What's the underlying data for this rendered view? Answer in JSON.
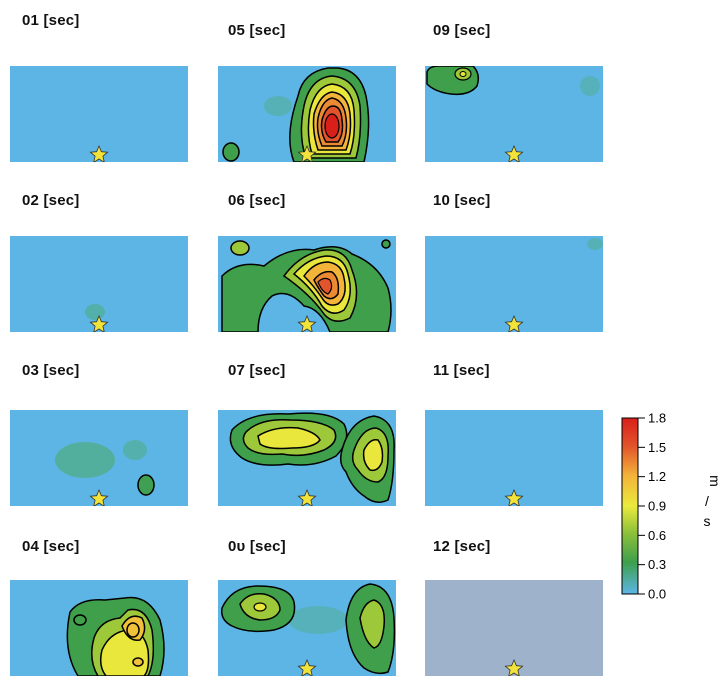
{
  "chart_data": {
    "type": "heatmap",
    "colorbar": {
      "ticks": [
        "1.8",
        "1.5",
        "1.2",
        "0.9",
        "0.6",
        "0.3",
        "0.0"
      ],
      "range": [
        0.0,
        1.8
      ],
      "unit_label_parts": [
        "m",
        "/",
        "s"
      ],
      "colors": [
        "#5db5e6",
        "#3d9f4c",
        "#8fc13a",
        "#eaea3c",
        "#f3b43a",
        "#e2542b",
        "#d81f1a"
      ]
    },
    "background_color": "#5db5e6",
    "panels": [
      {
        "label": "01 [sec]",
        "state": "low",
        "peak": 0.1
      },
      {
        "label": "02 [sec]",
        "state": "low",
        "peak": 0.1
      },
      {
        "label": "03 [sec]",
        "state": "low",
        "peak": 0.3
      },
      {
        "label": "04 [sec]",
        "state": "active",
        "peak": 1.2
      },
      {
        "label": "05 [sec]",
        "state": "active",
        "peak": 1.8
      },
      {
        "label": "06 [sec]",
        "state": "active",
        "peak": 1.5
      },
      {
        "label": "07 [sec]",
        "state": "active",
        "peak": 0.9
      },
      {
        "label": "0υ [sec]",
        "state": "active",
        "peak": 0.6
      },
      {
        "label": "09 [sec]",
        "state": "low",
        "peak": 0.5
      },
      {
        "label": "10 [sec]",
        "state": "low",
        "peak": 0.1
      },
      {
        "label": "11 [sec]",
        "state": "low",
        "peak": 0.1
      },
      {
        "label": "12 [sec]",
        "state": "no-data",
        "peak": 0.0
      }
    ]
  }
}
